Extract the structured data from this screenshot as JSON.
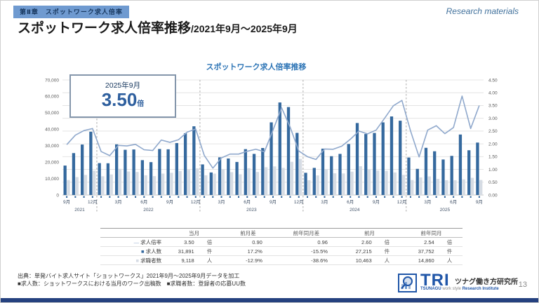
{
  "page": {
    "badge": "第Ⅱ章　スポットワーク求人倍率",
    "title": "スポットワーク求人倍率推移",
    "title_sub": "/2021年9月～2025年9月",
    "watermark": "Research materials",
    "page_number": "13",
    "source_line1": "出典：単発バイト求人サイト「ショットワークス」2021年9月～2025年9月データを加工",
    "source_line2": "■求人数：ショットワークスにおける当月のワーク出稿数　■求職者数：登録者の応募UU数"
  },
  "logo": {
    "tri": "TRI",
    "jp_name": "ツナグ働き方研究所",
    "en_1": "TSUNAGU",
    "en_2": " work style ",
    "en_3": "Research Institute"
  },
  "chart": {
    "title": "スポットワーク求人倍率推移",
    "callout": {
      "date": "2025年9月",
      "value": "3.50",
      "unit": "倍"
    }
  },
  "colors": {
    "bar_openings": "#35699e",
    "bar_seekers": "#d6dce4",
    "ratio_line": "#8fa8cc",
    "grid": "#e4e4e4",
    "axis_text": "#595959",
    "tick_text": "#44546a",
    "year_separator": "#ababab"
  },
  "chart_data": {
    "type": "bar+line combo",
    "x_months": [
      "2021-09",
      "2021-10",
      "2021-11",
      "2021-12",
      "2022-01",
      "2022-02",
      "2022-03",
      "2022-04",
      "2022-05",
      "2022-06",
      "2022-07",
      "2022-08",
      "2022-09",
      "2022-10",
      "2022-11",
      "2022-12",
      "2023-01",
      "2023-02",
      "2023-03",
      "2023-04",
      "2023-05",
      "2023-06",
      "2023-07",
      "2023-08",
      "2023-09",
      "2023-10",
      "2023-11",
      "2023-12",
      "2024-01",
      "2024-02",
      "2024-03",
      "2024-04",
      "2024-05",
      "2024-06",
      "2024-07",
      "2024-08",
      "2024-09",
      "2024-10",
      "2024-11",
      "2024-12",
      "2025-01",
      "2025-02",
      "2025-03",
      "2025-04",
      "2025-05",
      "2025-06",
      "2025-07",
      "2025-08",
      "2025-09"
    ],
    "series": [
      {
        "name": "求人数",
        "type": "bar",
        "axis": "left",
        "values": [
          17900,
          25500,
          30700,
          38500,
          19400,
          19300,
          30800,
          27500,
          27700,
          21200,
          20000,
          28000,
          27800,
          31600,
          37600,
          41800,
          18600,
          13700,
          22900,
          22200,
          20100,
          27900,
          25000,
          28600,
          44200,
          56300,
          53500,
          37800,
          13500,
          16500,
          28200,
          23600,
          25000,
          31000,
          43800,
          37100,
          37752,
          44200,
          47800,
          45200,
          22800,
          15900,
          28700,
          26600,
          21600,
          23800,
          36800,
          27215,
          31891
        ]
      },
      {
        "name": "求職者数",
        "type": "bar",
        "axis": "left",
        "values": [
          9100,
          10900,
          12200,
          14800,
          11400,
          12500,
          15900,
          14300,
          14000,
          12000,
          11500,
          13000,
          13500,
          14600,
          15300,
          16200,
          12000,
          13000,
          15800,
          13900,
          12600,
          16300,
          14000,
          16900,
          17400,
          16500,
          20200,
          22000,
          9000,
          11900,
          15700,
          13200,
          13100,
          14200,
          17500,
          15500,
          14860,
          14700,
          13700,
          12200,
          9100,
          10700,
          11300,
          9800,
          9000,
          9000,
          9500,
          10463,
          9118
        ]
      },
      {
        "name": "求人倍率",
        "type": "line",
        "axis": "right",
        "values": [
          1.97,
          2.34,
          2.52,
          2.6,
          1.7,
          1.54,
          1.94,
          1.92,
          1.98,
          1.77,
          1.74,
          2.15,
          2.06,
          2.16,
          2.46,
          2.58,
          1.55,
          1.05,
          1.45,
          1.6,
          1.6,
          1.71,
          1.79,
          1.69,
          2.54,
          3.41,
          2.65,
          1.72,
          1.5,
          1.39,
          1.8,
          1.79,
          1.91,
          2.18,
          2.5,
          2.39,
          2.54,
          3.01,
          3.49,
          3.7,
          2.51,
          1.49,
          2.54,
          2.71,
          2.4,
          2.64,
          3.87,
          2.6,
          3.5
        ]
      }
    ],
    "y_left": {
      "min": 0,
      "max": 70000,
      "step": 10000
    },
    "y_right": {
      "min": 0,
      "max": 4.5,
      "step": 0.5
    },
    "grid": "horizontal",
    "year_groups": [
      {
        "label": "2021",
        "start": 0,
        "end": 3
      },
      {
        "label": "2022",
        "start": 4,
        "end": 15
      },
      {
        "label": "2023",
        "start": 16,
        "end": 27
      },
      {
        "label": "2024",
        "start": 28,
        "end": 39
      },
      {
        "label": "2025",
        "start": 40,
        "end": 48
      }
    ]
  },
  "table": {
    "col_headers": [
      "当月",
      "前月差",
      "前年同月差",
      "前月",
      "前年同月"
    ],
    "rows": [
      {
        "marker": "line",
        "label": "求人倍率",
        "current": "3.50",
        "current_unit": "倍",
        "mom": "0.90",
        "yoy": "0.96",
        "prev": "2.60",
        "prev_unit": "倍",
        "prev_year": "2.54",
        "prev_year_unit": "倍"
      },
      {
        "marker": "dark",
        "label": "求人数",
        "current": "31,891",
        "current_unit": "件",
        "mom": "17.2%",
        "yoy": "-15.5%",
        "prev": "27,215",
        "prev_unit": "件",
        "prev_year": "37,752",
        "prev_year_unit": "件"
      },
      {
        "marker": "light",
        "label": "求職者数",
        "current": "9,118",
        "current_unit": "人",
        "mom": "-12.9%",
        "yoy": "-38.6%",
        "prev": "10,463",
        "prev_unit": "人",
        "prev_year": "14,860",
        "prev_year_unit": "人"
      }
    ]
  }
}
